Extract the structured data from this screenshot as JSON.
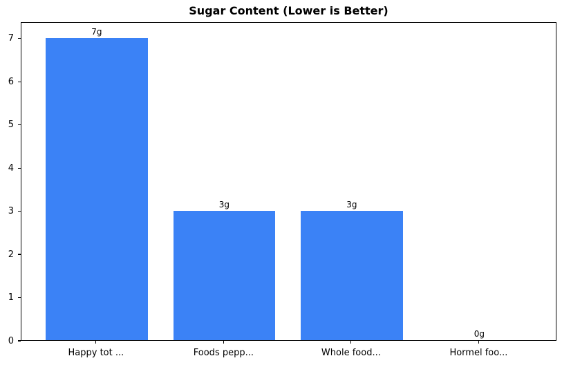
{
  "chart_data": {
    "type": "bar",
    "title": "Sugar Content (Lower is Better)",
    "categories": [
      "Happy tot ...",
      "Foods pepp...",
      "Whole food...",
      "Hormel foo..."
    ],
    "values": [
      7,
      3,
      3,
      0
    ],
    "value_labels": [
      "7g",
      "3g",
      "3g",
      "0g"
    ],
    "unit": "g",
    "bar_color": "#3b82f6",
    "text_color": "#000000",
    "spine_color": "#000000",
    "background_color": "#ffffff",
    "yticks": [
      0,
      1,
      2,
      3,
      4,
      5,
      6,
      7
    ],
    "ylim": [
      0,
      7.38
    ],
    "xlabel": "",
    "ylabel": "",
    "grid": false,
    "legend": "none"
  }
}
